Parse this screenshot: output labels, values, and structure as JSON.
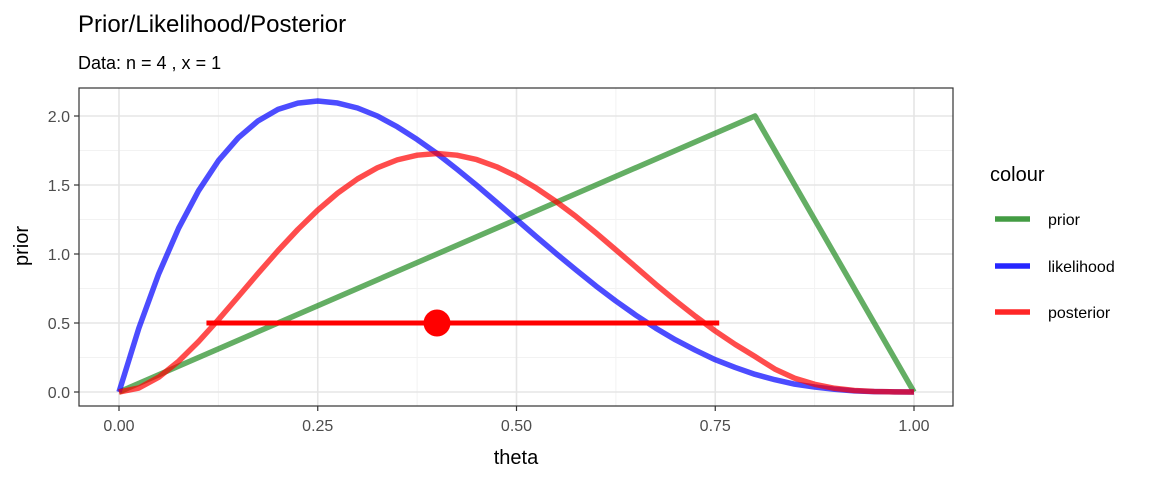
{
  "chart_data": {
    "type": "line",
    "title": "Prior/Likelihood/Posterior",
    "subtitle": "Data: n = 4 , x = 1",
    "xlabel": "theta",
    "ylabel": "prior",
    "xlim": [
      0,
      1
    ],
    "ylim": [
      0,
      2.1
    ],
    "x_ticks": [
      0,
      0.25,
      0.5,
      0.75,
      1.0
    ],
    "x_tick_labels": [
      "0.00",
      "0.25",
      "0.50",
      "0.75",
      "1.00"
    ],
    "y_ticks": [
      0,
      0.5,
      1.0,
      1.5,
      2.0
    ],
    "y_tick_labels": [
      "0.0",
      "0.5",
      "1.0",
      "1.5",
      "2.0"
    ],
    "grid": true,
    "legend": {
      "title": "colour",
      "placement": "right",
      "entries": [
        "prior",
        "likelihood",
        "posterior"
      ]
    },
    "colors": {
      "prior": "#228B22",
      "likelihood": "#0000FF",
      "posterior": "#FF0000"
    },
    "series": [
      {
        "name": "prior",
        "x": [
          0,
          0.8,
          1.0
        ],
        "y": [
          0,
          2.0,
          0
        ]
      },
      {
        "name": "likelihood",
        "x": [
          0,
          0.025,
          0.05,
          0.075,
          0.1,
          0.125,
          0.15,
          0.175,
          0.2,
          0.225,
          0.25,
          0.275,
          0.3,
          0.325,
          0.35,
          0.375,
          0.4,
          0.425,
          0.45,
          0.475,
          0.5,
          0.525,
          0.55,
          0.575,
          0.6,
          0.625,
          0.65,
          0.675,
          0.7,
          0.725,
          0.75,
          0.775,
          0.8,
          0.825,
          0.85,
          0.875,
          0.9,
          0.925,
          0.95,
          0.975,
          1.0
        ],
        "y": [
          0,
          0.463,
          0.857,
          1.187,
          1.458,
          1.676,
          1.842,
          1.965,
          2.048,
          2.093,
          2.109,
          2.094,
          2.058,
          2.0,
          1.922,
          1.83,
          1.728,
          1.615,
          1.497,
          1.374,
          1.25,
          1.125,
          1.003,
          0.884,
          0.768,
          0.659,
          0.557,
          0.463,
          0.378,
          0.303,
          0.234,
          0.178,
          0.128,
          0.089,
          0.057,
          0.036,
          0.02,
          0.008,
          0.003,
          0.001,
          0
        ]
      },
      {
        "name": "posterior",
        "x": [
          0,
          0.025,
          0.05,
          0.075,
          0.1,
          0.125,
          0.15,
          0.175,
          0.2,
          0.225,
          0.25,
          0.275,
          0.3,
          0.325,
          0.35,
          0.375,
          0.4,
          0.425,
          0.45,
          0.475,
          0.5,
          0.525,
          0.55,
          0.575,
          0.6,
          0.625,
          0.65,
          0.675,
          0.7,
          0.725,
          0.75,
          0.775,
          0.8,
          0.825,
          0.85,
          0.875,
          0.9,
          0.925,
          0.95,
          0.975,
          1.0
        ],
        "y": [
          0,
          0.029,
          0.107,
          0.223,
          0.365,
          0.524,
          0.691,
          0.86,
          1.024,
          1.178,
          1.318,
          1.441,
          1.544,
          1.625,
          1.682,
          1.716,
          1.728,
          1.716,
          1.684,
          1.632,
          1.563,
          1.477,
          1.379,
          1.271,
          1.153,
          1.03,
          0.906,
          0.781,
          0.662,
          0.549,
          0.442,
          0.345,
          0.257,
          0.166,
          0.1,
          0.056,
          0.027,
          0.011,
          0.004,
          0.001,
          0
        ]
      }
    ],
    "interval": {
      "series": "posterior",
      "x_start": 0.11,
      "x_end": 0.755,
      "y": 0.5,
      "point_x": 0.4,
      "point_y": 0.5
    }
  }
}
